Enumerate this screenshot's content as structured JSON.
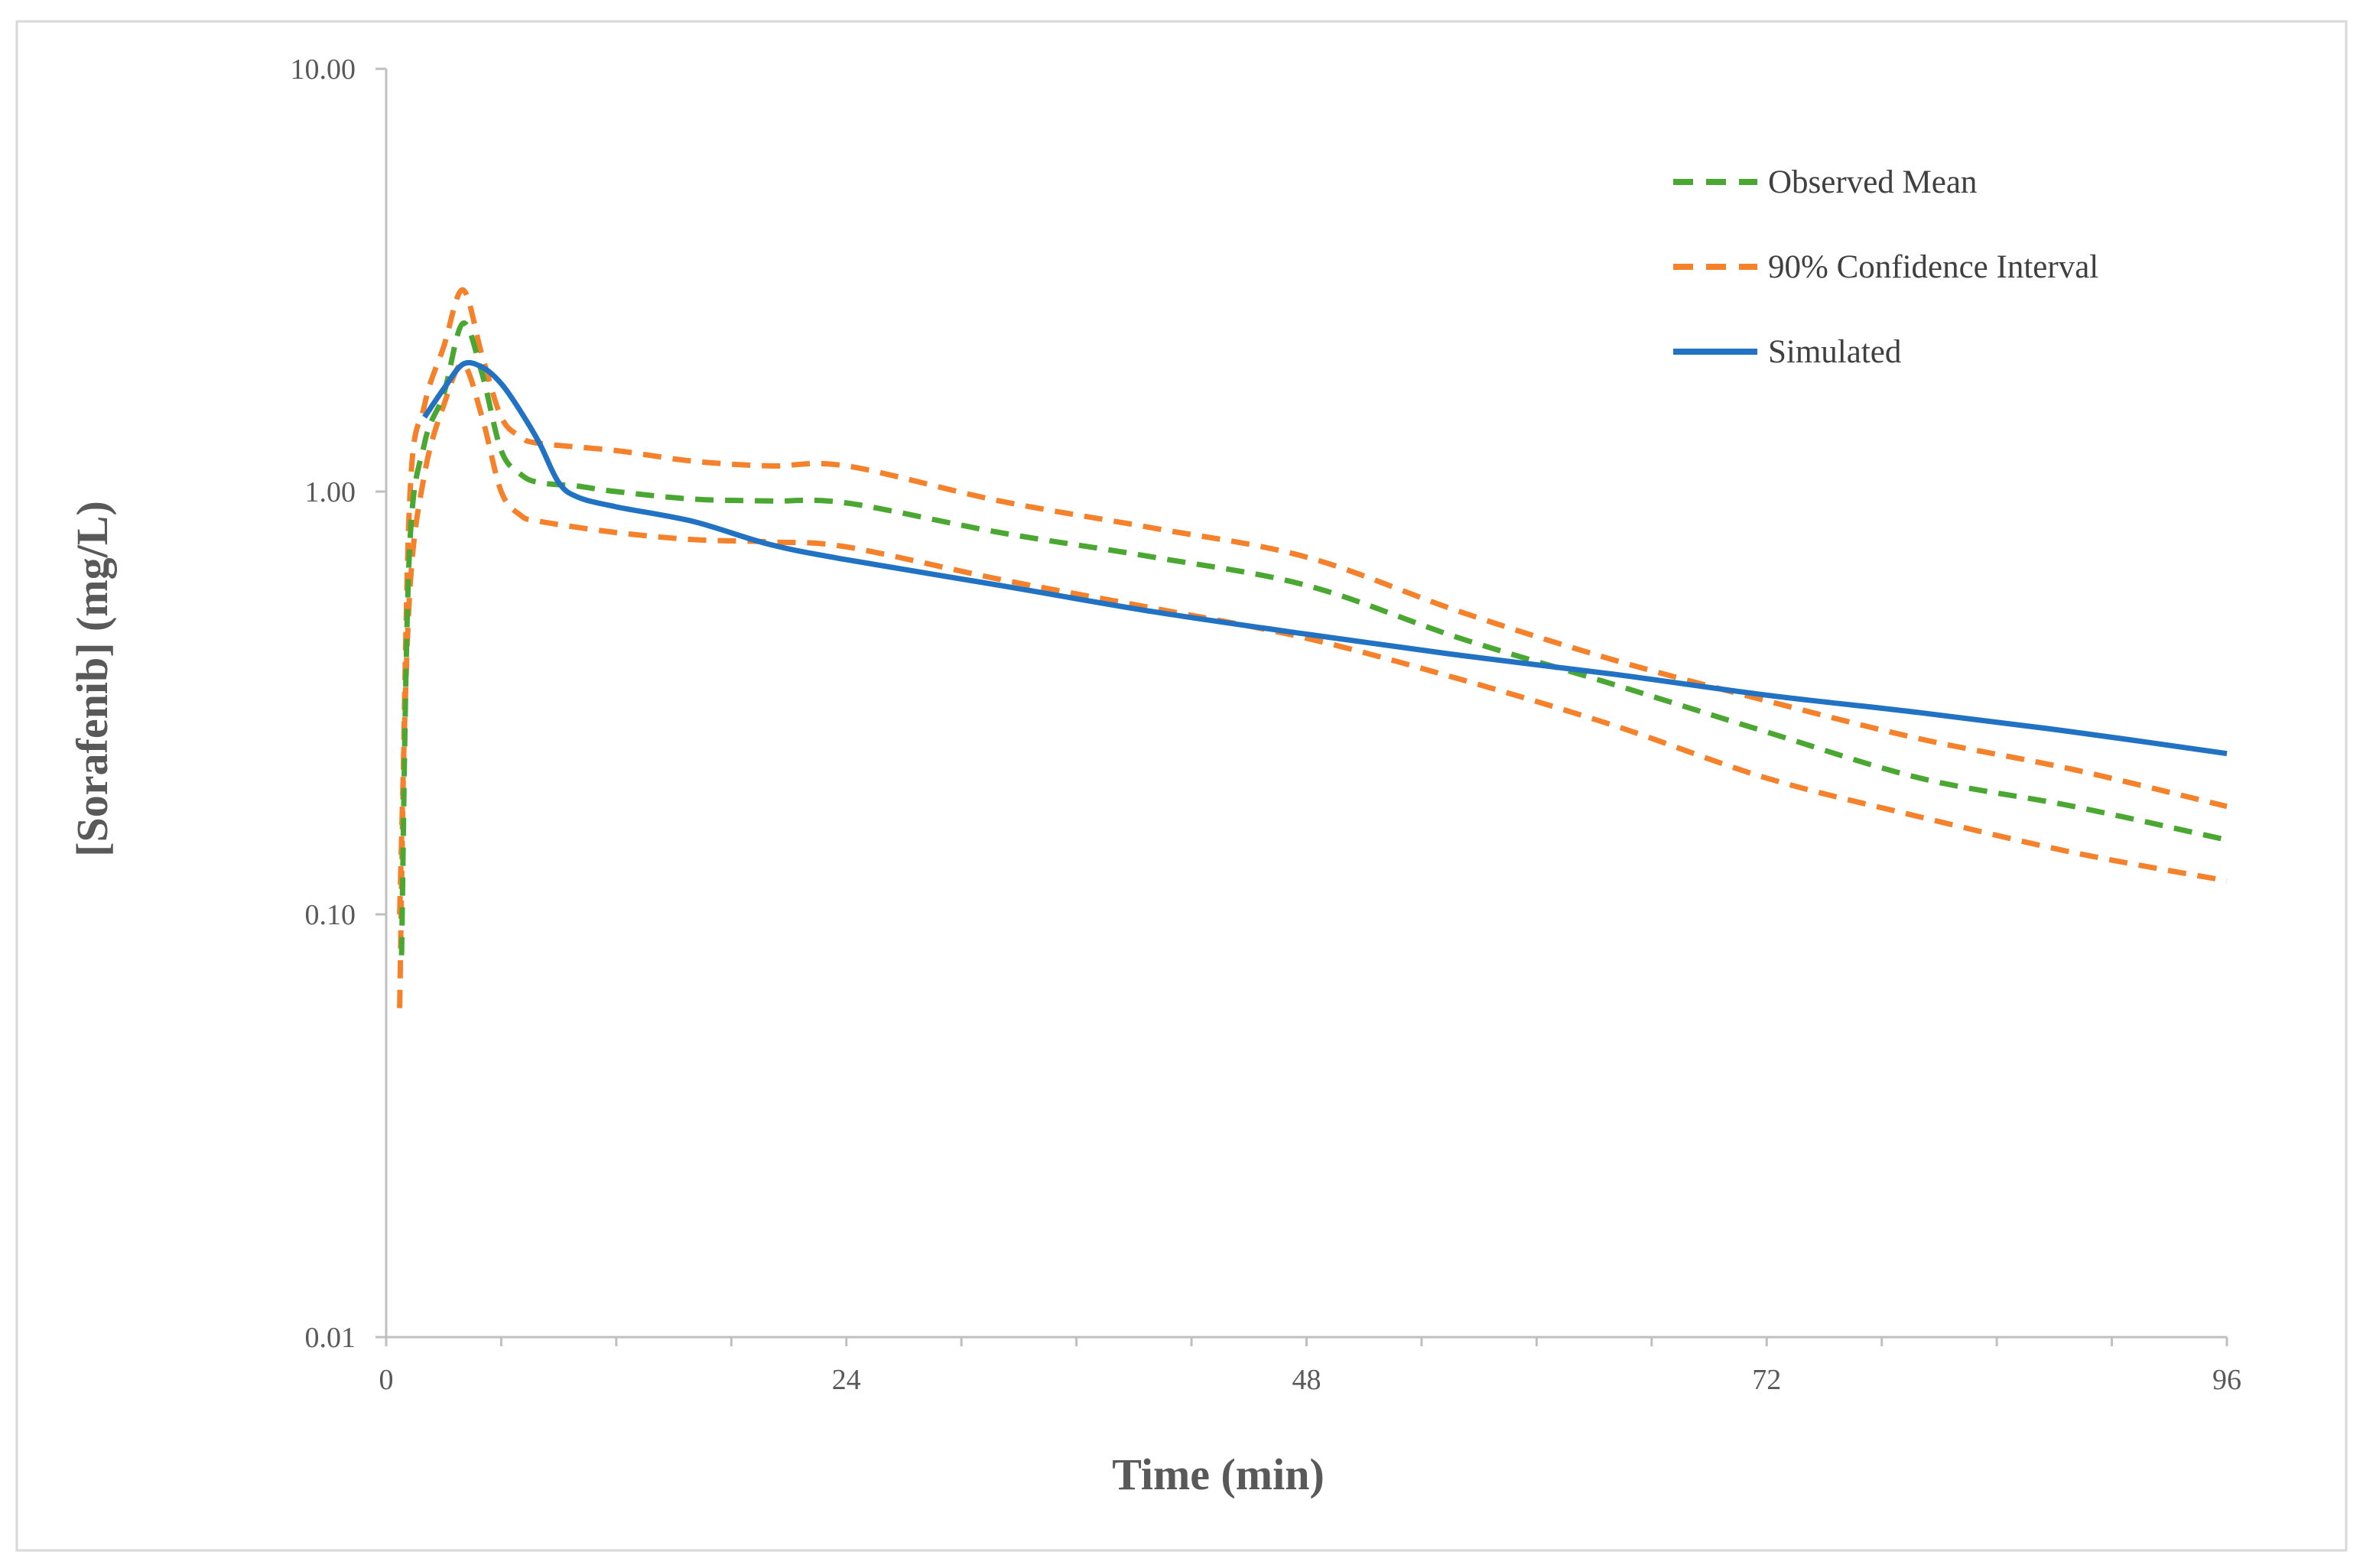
{
  "chart_data": {
    "type": "line",
    "title": "",
    "xlabel": "Time (min)",
    "ylabel": "[Sorafenib] (mg/L)",
    "xlim": [
      0,
      96
    ],
    "ylim": [
      0.01,
      10
    ],
    "yscale": "log",
    "x_ticks": [
      0,
      24,
      48,
      72,
      96
    ],
    "x_tick_labels": [
      "0",
      "24",
      "48",
      "72",
      "96"
    ],
    "x_minor_step": 6,
    "y_ticks": [
      10,
      1,
      0.1,
      0.01
    ],
    "y_tick_labels": [
      "10.00",
      "1.00",
      "0.10",
      "0.01"
    ],
    "grid": false,
    "legend_position": "top-right",
    "series": [
      {
        "name": "Observed Mean",
        "style": "dashed",
        "color": "#4aa832",
        "x": [
          0.8,
          1.2,
          2,
          3,
          4,
          5,
          6,
          7,
          8,
          10,
          12,
          16,
          20,
          24,
          32,
          40,
          48,
          56,
          64,
          72,
          80,
          88,
          96
        ],
        "y": [
          0.08,
          0.7,
          1.3,
          1.7,
          2.5,
          1.9,
          1.25,
          1.1,
          1.05,
          1.03,
          1.0,
          0.96,
          0.95,
          0.94,
          0.8,
          0.7,
          0.6,
          0.45,
          0.35,
          0.27,
          0.21,
          0.18,
          0.15
        ]
      },
      {
        "name": "90% Confidence Interval",
        "style": "dashed",
        "color": "#f5812a",
        "x": [
          0.7,
          1.2,
          2,
          3,
          4,
          5,
          6,
          7,
          8,
          12,
          16,
          20,
          24,
          32,
          40,
          48,
          56,
          64,
          72,
          80,
          88,
          96
        ],
        "y": [
          0.06,
          0.9,
          1.6,
          2.2,
          3.0,
          2.1,
          1.5,
          1.35,
          1.3,
          1.25,
          1.18,
          1.15,
          1.15,
          0.95,
          0.82,
          0.7,
          0.52,
          0.4,
          0.32,
          0.26,
          0.22,
          0.18
        ]
      },
      {
        "name": "90% Confidence Interval (lower bound)",
        "style": "dashed",
        "color": "#f5812a",
        "x": [
          0.7,
          1.2,
          2,
          3,
          4,
          5,
          6,
          7,
          8,
          12,
          16,
          20,
          24,
          32,
          40,
          48,
          56,
          64,
          72,
          80,
          88,
          96
        ],
        "y": [
          0.1,
          0.55,
          1.1,
          1.6,
          2.0,
          1.5,
          1.0,
          0.88,
          0.85,
          0.8,
          0.77,
          0.76,
          0.74,
          0.62,
          0.53,
          0.45,
          0.36,
          0.28,
          0.21,
          0.17,
          0.14,
          0.12
        ]
      },
      {
        "name": "Simulated",
        "style": "solid",
        "color": "#2272c3",
        "x": [
          2,
          3,
          4,
          5,
          6,
          7,
          8,
          9,
          10,
          12,
          16,
          20,
          24,
          32,
          40,
          48,
          56,
          64,
          72,
          80,
          88,
          96
        ],
        "y": [
          1.5,
          1.75,
          2.0,
          1.97,
          1.8,
          1.55,
          1.3,
          1.05,
          0.97,
          0.92,
          0.85,
          0.75,
          0.69,
          0.6,
          0.52,
          0.46,
          0.41,
          0.37,
          0.33,
          0.3,
          0.27,
          0.24
        ]
      }
    ],
    "legend": [
      {
        "label": "Observed Mean",
        "style": "dashed",
        "color": "#4aa832"
      },
      {
        "label": "90% Confidence Interval",
        "style": "dashed",
        "color": "#f5812a"
      },
      {
        "label": "Simulated",
        "style": "solid",
        "color": "#2272c3"
      }
    ]
  }
}
